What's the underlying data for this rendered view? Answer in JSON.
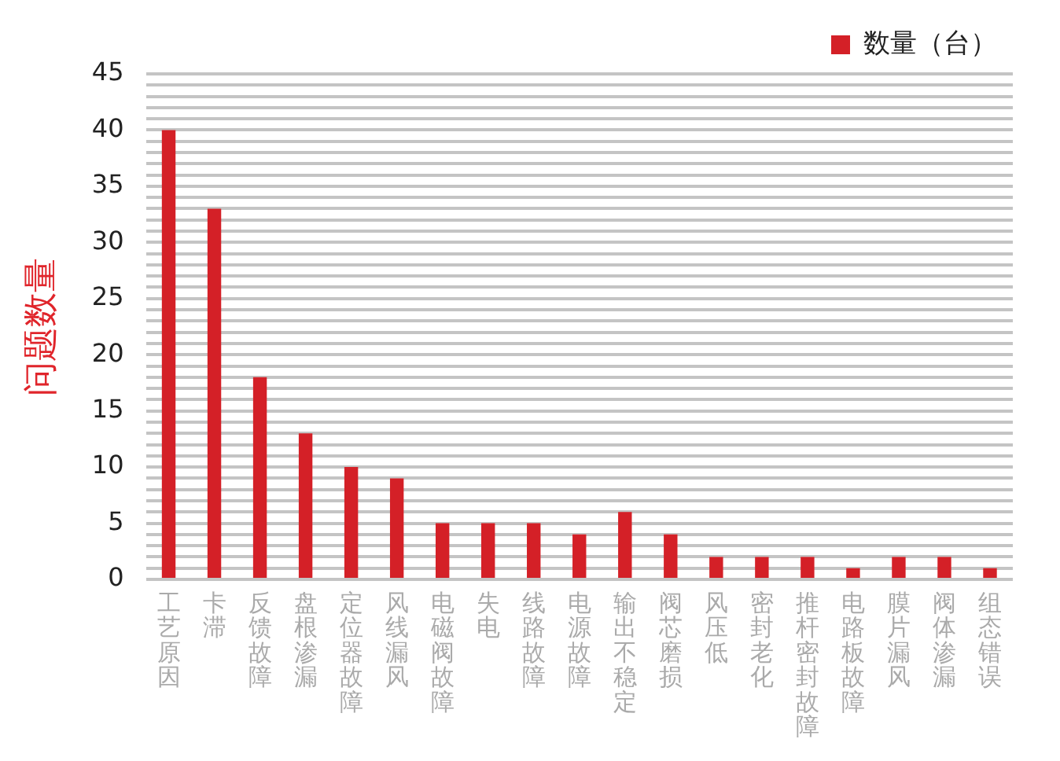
{
  "chart_data": {
    "type": "bar",
    "ylabel": "问题数量",
    "categories": [
      "工艺原因",
      "卡滞",
      "反馈故障",
      "盘根渗漏",
      "定位器故障",
      "风线漏风",
      "电磁阀故障",
      "失电",
      "线路故障",
      "电源故障",
      "输出不稳定",
      "阀芯磨损",
      "风压低",
      "密封老化",
      "推杆密封故障",
      "电路板故障",
      "膜片漏风",
      "阀体渗漏",
      "组态错误"
    ],
    "series": [
      {
        "name": "数量（台）",
        "color": "#d42027",
        "values": [
          40,
          33,
          18,
          13,
          10,
          9,
          5,
          5,
          5,
          4,
          6,
          4,
          2,
          2,
          2,
          1,
          2,
          2,
          1
        ]
      }
    ],
    "ylim": [
      0,
      45
    ],
    "yticks": [
      0,
      {
        "value": 1,
        "label": null
      },
      {
        "value": 2,
        "label": null
      },
      {
        "value": 3,
        "label": null
      },
      {
        "value": 4,
        "label": null
      },
      5,
      {
        "value": 6,
        "label": null
      },
      {
        "value": 7,
        "label": null
      },
      {
        "value": 8,
        "label": null
      },
      {
        "value": 9,
        "label": null
      },
      10,
      {
        "value": 11,
        "label": null
      },
      {
        "value": 12,
        "label": null
      },
      {
        "value": 13,
        "label": null
      },
      {
        "value": 14,
        "label": null
      },
      15,
      {
        "value": 16,
        "label": null
      },
      {
        "value": 17,
        "label": null
      },
      {
        "value": 18,
        "label": null
      },
      {
        "value": 19,
        "label": null
      },
      20,
      {
        "value": 21,
        "label": null
      },
      {
        "value": 22,
        "label": null
      },
      {
        "value": 23,
        "label": null
      },
      {
        "value": 24,
        "label": null
      },
      25,
      {
        "value": 26,
        "label": null
      },
      {
        "value": 27,
        "label": null
      },
      {
        "value": 28,
        "label": null
      },
      {
        "value": 29,
        "label": null
      },
      30,
      {
        "value": 31,
        "label": null
      },
      {
        "value": 32,
        "label": null
      },
      {
        "value": 33,
        "label": null
      },
      {
        "value": 34,
        "label": null
      },
      35,
      {
        "value": 36,
        "label": null
      },
      {
        "value": 37,
        "label": null
      },
      {
        "value": 38,
        "label": null
      },
      {
        "value": 39,
        "label": null
      },
      40,
      {
        "value": 41,
        "label": null
      },
      {
        "value": 42,
        "label": null
      },
      {
        "value": 43,
        "label": null
      },
      {
        "value": 44,
        "label": null
      },
      45
    ],
    "grid": "y",
    "legend": "top right"
  }
}
